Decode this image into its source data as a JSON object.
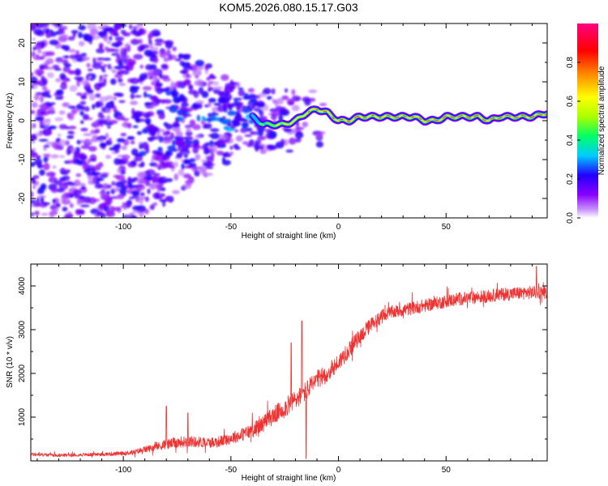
{
  "title": "KOM5.2026.080.15.17.G03",
  "chart_data": [
    {
      "type": "heatmap",
      "title": "KOM5.2026.080.15.17.G03",
      "xlabel": "Height of straight line (km)",
      "ylabel": "Frequency (Hz)",
      "xlim": [
        -143,
        97
      ],
      "ylim": [
        -25,
        25
      ],
      "x_ticks": [
        -100,
        -50,
        0,
        50
      ],
      "y_ticks": [
        -20,
        -10,
        0,
        10,
        20
      ],
      "x_tick_labels": [
        "-100",
        "-50",
        "0",
        "50"
      ],
      "y_tick_labels": [
        "-20",
        "-10",
        "0",
        "10",
        "20"
      ],
      "colorbar": {
        "label": "Normalized spectral amplitude",
        "range": [
          0,
          1
        ],
        "ticks": [
          0.0,
          0.2,
          0.4,
          0.6,
          0.8
        ],
        "tick_labels": [
          "0.0",
          "0.2",
          "0.4",
          "0.6",
          "0.8"
        ],
        "colors": [
          "#ffffff",
          "#cc99ff",
          "#8800ff",
          "#2200ff",
          "#00ccff",
          "#00ff66",
          "#aaff00",
          "#ffff00",
          "#ff8800",
          "#ff0000",
          "#ff0080"
        ]
      },
      "signal_ridge": {
        "x": [
          -40,
          -35,
          -30,
          -25,
          -20,
          -15,
          -10,
          -5,
          0,
          5,
          10,
          15,
          20,
          25,
          30,
          35,
          40,
          45,
          50,
          55,
          60,
          65,
          70,
          75,
          80,
          85,
          90,
          97
        ],
        "freq_hz": [
          1,
          -1,
          -1,
          -1,
          0,
          2,
          3,
          2,
          0,
          0,
          1,
          1,
          1,
          1,
          1,
          1,
          0,
          0,
          1,
          1,
          1,
          1,
          0,
          1,
          1,
          1,
          1,
          2
        ],
        "peak_amplitude": [
          0.3,
          0.45,
          0.55,
          0.65,
          0.7,
          0.75,
          0.8,
          0.8,
          0.8,
          0.85,
          0.85,
          0.8,
          0.8,
          0.85,
          0.85,
          0.8,
          0.8,
          0.85,
          0.85,
          0.9,
          0.9,
          0.85,
          0.85,
          0.9,
          0.9,
          0.9,
          0.9,
          0.9
        ]
      },
      "noise_region": {
        "x_from": -143,
        "x_to": -25,
        "note": "scattered purple speckle noise"
      }
    },
    {
      "type": "line",
      "xlabel": "Height of straight line (km)",
      "ylabel": "SNR (10 * v/v)",
      "xlim": [
        -143,
        97
      ],
      "ylim": [
        0,
        4500
      ],
      "x_ticks": [
        -100,
        -50,
        0,
        50
      ],
      "y_ticks": [
        1000,
        2000,
        3000,
        4000
      ],
      "x_tick_labels": [
        "-100",
        "-50",
        "0",
        "50"
      ],
      "y_tick_labels": [
        "1000",
        "2000",
        "3000",
        "4000"
      ],
      "series": [
        {
          "name": "SNR",
          "color": "#ee3333",
          "x": [
            -143,
            -130,
            -120,
            -110,
            -100,
            -95,
            -90,
            -85,
            -80,
            -75,
            -70,
            -65,
            -60,
            -55,
            -50,
            -45,
            -40,
            -35,
            -30,
            -25,
            -20,
            -15,
            -10,
            -5,
            0,
            5,
            10,
            15,
            20,
            25,
            30,
            35,
            40,
            45,
            50,
            55,
            60,
            65,
            70,
            75,
            80,
            85,
            90,
            97
          ],
          "values": [
            150,
            130,
            140,
            150,
            170,
            200,
            260,
            320,
            380,
            420,
            450,
            430,
            420,
            450,
            520,
            600,
            700,
            850,
            1050,
            1200,
            1400,
            1600,
            1850,
            2000,
            2250,
            2550,
            2850,
            3100,
            3300,
            3400,
            3450,
            3500,
            3550,
            3600,
            3650,
            3700,
            3720,
            3750,
            3770,
            3800,
            3820,
            3840,
            3850,
            3860
          ],
          "noise_amplitude": [
            80,
            70,
            70,
            80,
            90,
            110,
            150,
            180,
            230,
            250,
            260,
            250,
            240,
            250,
            280,
            300,
            340,
            380,
            420,
            440,
            460,
            460,
            440,
            420,
            400,
            380,
            360,
            340,
            320,
            300,
            300,
            300,
            300,
            300,
            300,
            300,
            300,
            300,
            300,
            300,
            300,
            300,
            300,
            300
          ],
          "spikes": [
            {
              "x": -80,
              "value": 1250
            },
            {
              "x": -70,
              "value": 1100
            },
            {
              "x": -22,
              "value": 2700
            },
            {
              "x": -17,
              "value": 3200
            },
            {
              "x": -15,
              "value": 50
            },
            {
              "x": 92,
              "value": 4450
            }
          ]
        }
      ]
    }
  ]
}
